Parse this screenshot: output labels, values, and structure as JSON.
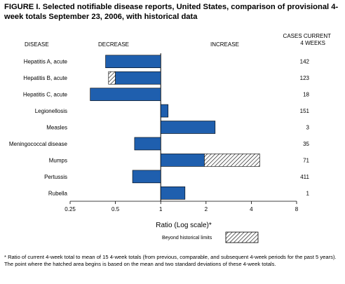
{
  "title": "FIGURE I. Selected notifiable disease reports, United States, comparison of provisional 4-week totals September 23, 2006, with historical data",
  "headers": {
    "disease": "DISEASE",
    "decrease": "DECREASE",
    "increase": "INCREASE",
    "cases_line1": "CASES CURRENT",
    "cases_line2": "4 WEEKS"
  },
  "legend": {
    "label": "Beyond historical limits"
  },
  "footnote": "* Ratio of current 4-week total to mean of 15 4-week totals (from previous, comparable, and subsequent 4-week periods for the past 5 years). The point where the hatched area begins is based on the mean and two standard deviations of these 4-week totals.",
  "colors": {
    "bar": "#1f5fae",
    "bar_stroke": "#000000",
    "hatch": "#000000"
  },
  "chart_data": {
    "type": "bar",
    "orientation": "horizontal",
    "categories": [
      "Hepatitis A, acute",
      "Hepatitis B, acute",
      "Hepatitis C, acute",
      "Legionellosis",
      "Measles",
      "Meningococcal disease",
      "Mumps",
      "Pertussis",
      "Rubella"
    ],
    "values": [
      0.43,
      0.45,
      0.34,
      1.12,
      2.3,
      0.67,
      4.55,
      0.65,
      1.45
    ],
    "beyond_historical_limits_from": [
      null,
      0.5,
      null,
      null,
      null,
      null,
      1.95,
      null,
      null
    ],
    "cases_current_4_weeks": [
      "142",
      "123",
      "18",
      "151",
      "3",
      "35",
      "71",
      "411",
      "1"
    ],
    "xlabel": "Ratio (Log scale)*",
    "xscale": "log2",
    "xlim": [
      0.25,
      8
    ],
    "xticks": [
      0.25,
      0.5,
      1,
      2,
      4,
      8
    ],
    "xtick_labels": [
      "0.25",
      "0.5",
      "1",
      "2",
      "4",
      "8"
    ],
    "baseline": 1
  }
}
